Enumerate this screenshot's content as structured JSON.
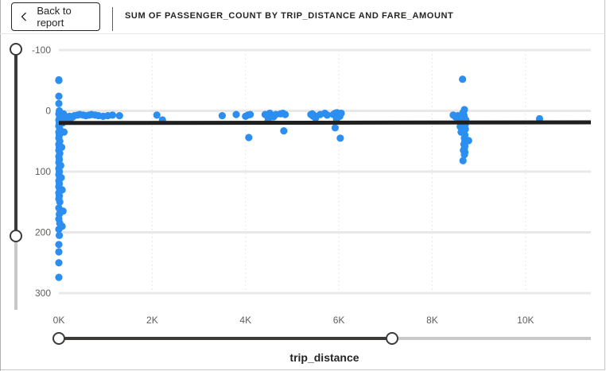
{
  "header": {
    "back_label": "Back to report",
    "title": "SUM OF PASSENGER_COUNT BY TRIP_DISTANCE AND FARE_AMOUNT"
  },
  "colors": {
    "points": "#2b8ef0",
    "trend": "#1f1f1f",
    "grid": "#e8e8e8",
    "slider": "#3b3a39",
    "slider_inactive": "#c8c8c8"
  },
  "icons": {
    "back": "chevron-left-icon"
  },
  "sliders": {
    "y_range": {
      "low": -100,
      "high": 200
    },
    "x_range": {
      "low": 0,
      "high": 7000
    }
  },
  "chart_data": {
    "type": "scatter",
    "title": "SUM OF PASSENGER_COUNT BY TRIP_DISTANCE AND FARE_AMOUNT",
    "xlabel": "trip_distance",
    "ylabel": "",
    "xlim": [
      0,
      11400
    ],
    "ylim": [
      -100,
      300
    ],
    "y_inverted": true,
    "grid": true,
    "x_ticks": [
      {
        "value": 0,
        "label": "0K"
      },
      {
        "value": 2000,
        "label": "2K"
      },
      {
        "value": 4000,
        "label": "4K"
      },
      {
        "value": 6000,
        "label": "6K"
      },
      {
        "value": 8000,
        "label": "8K"
      },
      {
        "value": 10000,
        "label": "10K"
      }
    ],
    "y_ticks": [
      {
        "value": -100,
        "label": "-100"
      },
      {
        "value": 0,
        "label": "0"
      },
      {
        "value": 100,
        "label": "100"
      },
      {
        "value": 200,
        "label": "200"
      },
      {
        "value": 300,
        "label": "300"
      }
    ],
    "trend_line": {
      "x": [
        0,
        11400
      ],
      "y": [
        20,
        19
      ]
    },
    "points": [
      [
        0,
        -50
      ],
      [
        0,
        -51
      ],
      [
        0,
        -24
      ],
      [
        0,
        -12
      ],
      [
        10,
        0
      ],
      [
        0,
        5
      ],
      [
        20,
        10
      ],
      [
        0,
        15
      ],
      [
        10,
        20
      ],
      [
        0,
        25
      ],
      [
        20,
        30
      ],
      [
        0,
        35
      ],
      [
        10,
        40
      ],
      [
        0,
        45
      ],
      [
        20,
        50
      ],
      [
        0,
        55
      ],
      [
        10,
        60
      ],
      [
        0,
        65
      ],
      [
        20,
        70
      ],
      [
        0,
        75
      ],
      [
        10,
        80
      ],
      [
        0,
        85
      ],
      [
        20,
        90
      ],
      [
        0,
        95
      ],
      [
        10,
        100
      ],
      [
        0,
        105
      ],
      [
        20,
        110
      ],
      [
        0,
        115
      ],
      [
        10,
        120
      ],
      [
        0,
        125
      ],
      [
        20,
        130
      ],
      [
        0,
        135
      ],
      [
        10,
        140
      ],
      [
        0,
        145
      ],
      [
        20,
        150
      ],
      [
        0,
        160
      ],
      [
        10,
        170
      ],
      [
        0,
        178
      ],
      [
        20,
        185
      ],
      [
        0,
        195
      ],
      [
        10,
        205
      ],
      [
        0,
        220
      ],
      [
        0,
        232
      ],
      [
        0,
        250
      ],
      [
        0,
        274
      ],
      [
        100,
        5
      ],
      [
        80,
        20
      ],
      [
        110,
        35
      ],
      [
        60,
        60
      ],
      [
        70,
        130
      ],
      [
        50,
        110
      ],
      [
        40,
        90
      ],
      [
        90,
        165
      ],
      [
        70,
        190
      ],
      [
        120,
        8
      ],
      [
        150,
        10
      ],
      [
        130,
        14
      ],
      [
        180,
        12
      ],
      [
        230,
        9
      ],
      [
        260,
        12
      ],
      [
        300,
        10
      ],
      [
        330,
        8
      ],
      [
        400,
        7
      ],
      [
        450,
        6
      ],
      [
        520,
        7
      ],
      [
        580,
        8
      ],
      [
        650,
        7
      ],
      [
        700,
        6
      ],
      [
        780,
        7
      ],
      [
        850,
        8
      ],
      [
        950,
        9
      ],
      [
        1050,
        8
      ],
      [
        1150,
        7
      ],
      [
        1300,
        8
      ],
      [
        2100,
        7
      ],
      [
        2220,
        15
      ],
      [
        3500,
        8
      ],
      [
        3800,
        6
      ],
      [
        4000,
        9
      ],
      [
        4050,
        7
      ],
      [
        4100,
        6
      ],
      [
        4070,
        44
      ],
      [
        4420,
        6
      ],
      [
        4470,
        9
      ],
      [
        4500,
        12
      ],
      [
        4480,
        17
      ],
      [
        4520,
        4
      ],
      [
        4550,
        8
      ],
      [
        4600,
        10
      ],
      [
        4650,
        6
      ],
      [
        4750,
        5
      ],
      [
        4800,
        4
      ],
      [
        4850,
        6
      ],
      [
        4820,
        33
      ],
      [
        5400,
        6
      ],
      [
        5450,
        9
      ],
      [
        5500,
        12
      ],
      [
        5430,
        5
      ],
      [
        5480,
        8
      ],
      [
        5600,
        6
      ],
      [
        5700,
        4
      ],
      [
        5750,
        7
      ],
      [
        5880,
        6
      ],
      [
        5920,
        4
      ],
      [
        5960,
        3
      ],
      [
        6000,
        6
      ],
      [
        6020,
        9
      ],
      [
        6050,
        4
      ],
      [
        5950,
        14
      ],
      [
        5920,
        28
      ],
      [
        6030,
        45
      ],
      [
        8450,
        7
      ],
      [
        8500,
        10
      ],
      [
        8550,
        8
      ],
      [
        8580,
        18
      ],
      [
        8600,
        26
      ],
      [
        8620,
        35
      ],
      [
        8650,
        -52
      ],
      [
        8660,
        3
      ],
      [
        8670,
        5
      ],
      [
        8680,
        8
      ],
      [
        8690,
        12
      ],
      [
        8700,
        18
      ],
      [
        8710,
        22
      ],
      [
        8690,
        28
      ],
      [
        8680,
        35
      ],
      [
        8700,
        40
      ],
      [
        8690,
        45
      ],
      [
        8700,
        50
      ],
      [
        8680,
        55
      ],
      [
        8700,
        58
      ],
      [
        8690,
        62
      ],
      [
        8670,
        65
      ],
      [
        8700,
        68
      ],
      [
        8690,
        72
      ],
      [
        8660,
        82
      ],
      [
        8690,
        -2
      ],
      [
        8720,
        15
      ],
      [
        8710,
        30
      ],
      [
        8780,
        49
      ],
      [
        10300,
        13
      ]
    ]
  }
}
